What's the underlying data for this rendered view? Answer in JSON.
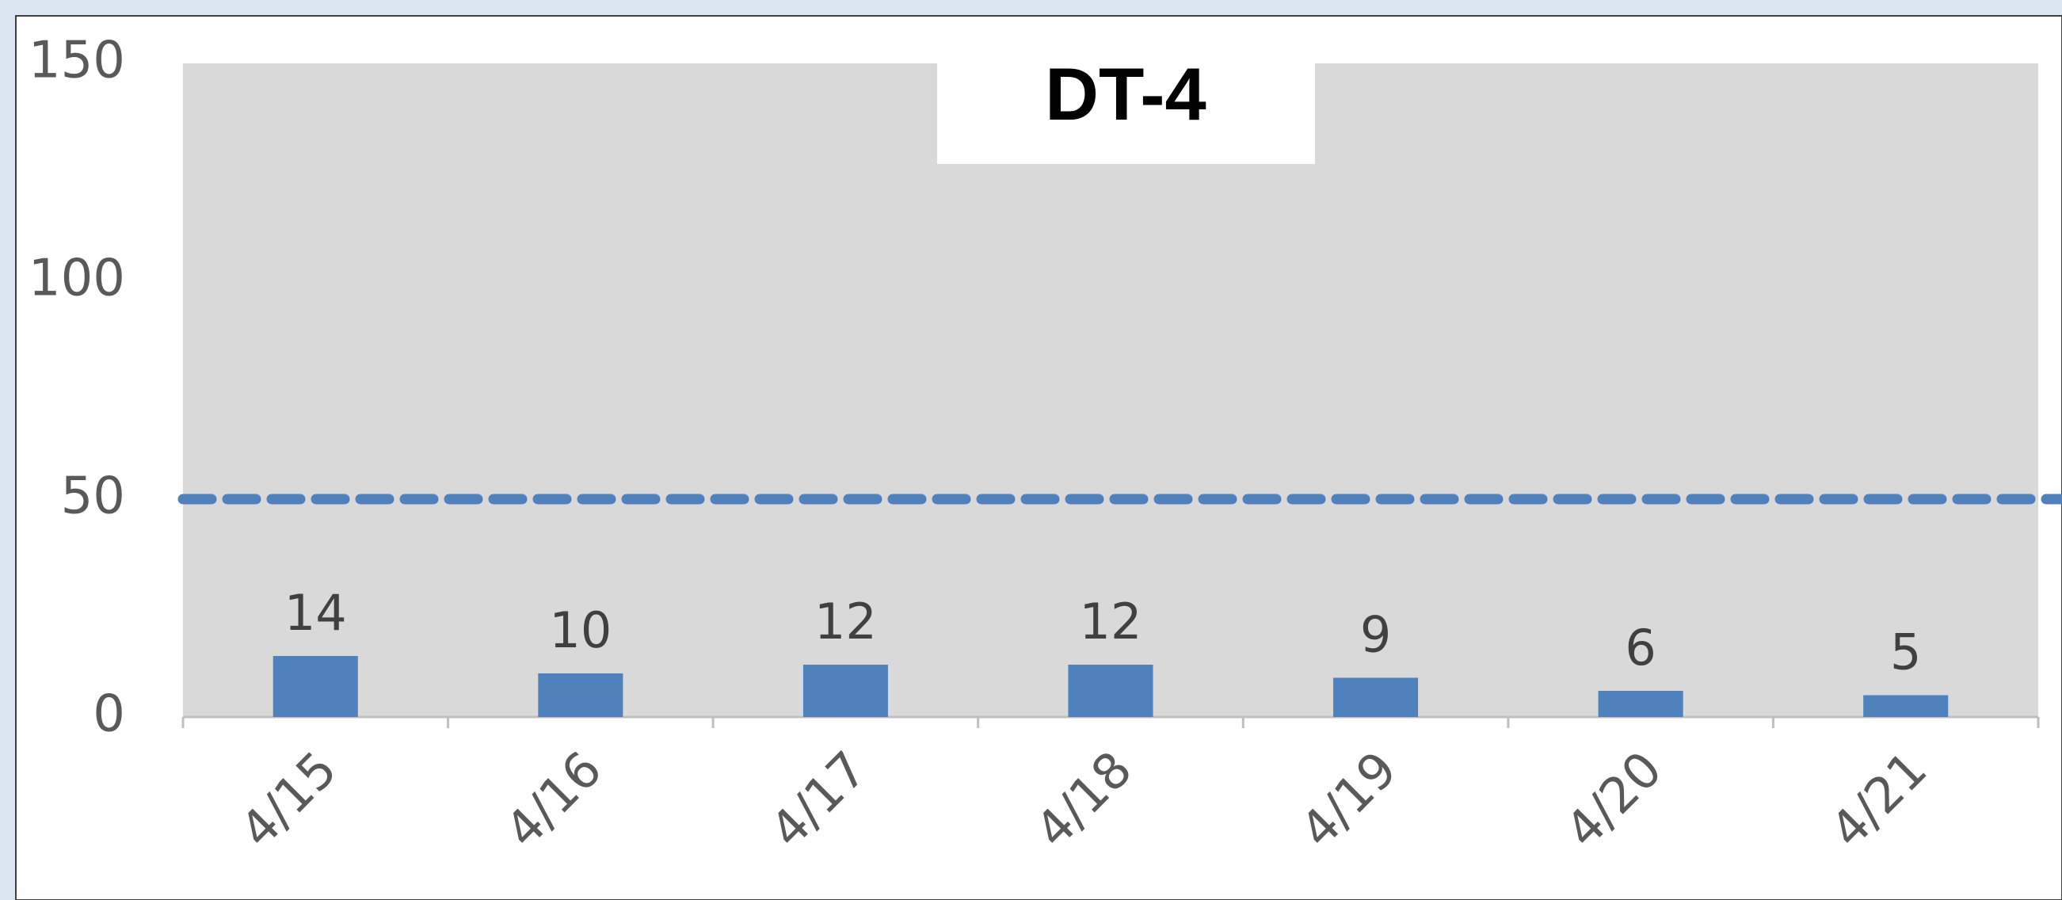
{
  "chart_data": {
    "type": "bar",
    "title": "DT-4",
    "categories": [
      "4/15",
      "4/16",
      "4/17",
      "4/18",
      "4/19",
      "4/20",
      "4/21"
    ],
    "values": [
      14,
      10,
      12,
      12,
      9,
      6,
      5
    ],
    "color": "#4f81bd",
    "ylim": [
      0,
      150
    ],
    "yticks": [
      0,
      50,
      100,
      150
    ],
    "reference_line": {
      "value": 50,
      "color": "#4f81bd"
    }
  }
}
